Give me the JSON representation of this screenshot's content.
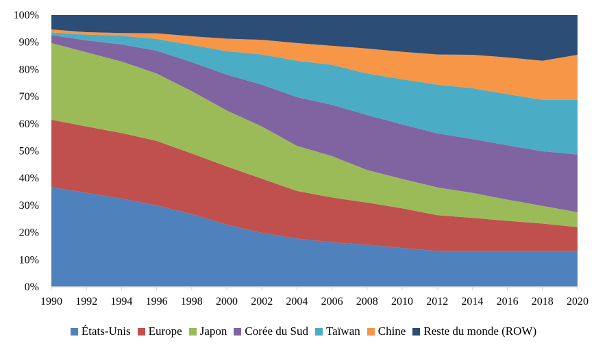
{
  "chart_data": {
    "type": "area",
    "stacked": true,
    "title": "",
    "xlabel": "",
    "ylabel": "",
    "ylim": [
      0,
      100
    ],
    "y_ticks": [
      "0%",
      "10%",
      "20%",
      "30%",
      "40%",
      "50%",
      "60%",
      "70%",
      "80%",
      "90%",
      "100%"
    ],
    "x": [
      1990,
      1992,
      1994,
      1996,
      1998,
      2000,
      2002,
      2004,
      2006,
      2008,
      2010,
      2012,
      2014,
      2016,
      2018,
      2020
    ],
    "x_ticks": [
      "1990",
      "1992",
      "1994",
      "1996",
      "1998",
      "2000",
      "2002",
      "2004",
      "2006",
      "2008",
      "2010",
      "2012",
      "2014",
      "2016",
      "2018",
      "2020"
    ],
    "legend_position": "bottom",
    "series": [
      {
        "name": "États-Unis",
        "color": "#4F81BD",
        "values": [
          36.7,
          34.6,
          32.5,
          30.0,
          26.8,
          22.9,
          19.9,
          17.8,
          16.4,
          15.5,
          14.3,
          13.2,
          13.2,
          13.2,
          13.2,
          13.2
        ]
      },
      {
        "name": "Europe",
        "color": "#C0504D",
        "values": [
          24.8,
          24.4,
          24.1,
          23.7,
          22.3,
          21.4,
          19.9,
          17.5,
          16.5,
          15.5,
          14.6,
          13.2,
          12.2,
          11.1,
          10.1,
          8.8
        ]
      },
      {
        "name": "Japon",
        "color": "#9BBB59",
        "values": [
          28.2,
          27.3,
          26.3,
          24.8,
          22.9,
          20.6,
          19.2,
          16.6,
          15.2,
          12.0,
          10.8,
          10.2,
          9.2,
          7.8,
          6.5,
          5.5
        ]
      },
      {
        "name": "Corée du Sud",
        "color": "#8064A2",
        "values": [
          2.9,
          4.4,
          6.3,
          8.4,
          10.7,
          13.2,
          15.4,
          17.9,
          18.9,
          20.2,
          20.1,
          19.9,
          19.8,
          20.0,
          20.1,
          21.2
        ]
      },
      {
        "name": "Taïwan",
        "color": "#4BACC6",
        "values": [
          1.0,
          2.1,
          3.2,
          4.3,
          6.3,
          8.6,
          11.1,
          13.4,
          14.7,
          15.3,
          16.6,
          17.9,
          18.7,
          18.8,
          18.9,
          20.1
        ]
      },
      {
        "name": "Chine",
        "color": "#F79646",
        "values": [
          1.1,
          0.9,
          1.0,
          2.1,
          3.2,
          4.6,
          5.4,
          6.5,
          7.0,
          9.2,
          10.1,
          11.1,
          12.3,
          13.5,
          14.4,
          16.6
        ]
      },
      {
        "name": "Reste du monde (ROW)",
        "color": "#2C4D75",
        "values": [
          5.3,
          6.3,
          6.6,
          6.7,
          7.8,
          8.7,
          9.1,
          10.3,
          11.3,
          12.3,
          13.5,
          14.5,
          14.6,
          15.6,
          16.8,
          14.6
        ]
      }
    ]
  }
}
